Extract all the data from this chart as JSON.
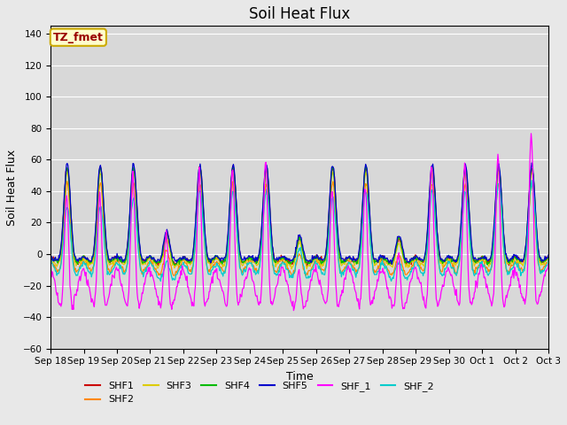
{
  "title": "Soil Heat Flux",
  "xlabel": "Time",
  "ylabel": "Soil Heat Flux",
  "ylim": [
    -60,
    145
  ],
  "yticks": [
    -60,
    -40,
    -20,
    0,
    20,
    40,
    60,
    80,
    100,
    120,
    140
  ],
  "x_tick_labels": [
    "Sep 18",
    "Sep 19",
    "Sep 20",
    "Sep 21",
    "Sep 22",
    "Sep 23",
    "Sep 24",
    "Sep 25",
    "Sep 26",
    "Sep 27",
    "Sep 28",
    "Sep 29",
    "Sep 30",
    "Oct 1",
    "Oct 2",
    "Oct 3"
  ],
  "series_colors": {
    "SHF1": "#cc0000",
    "SHF2": "#ff8800",
    "SHF3": "#ddcc00",
    "SHF4": "#00bb00",
    "SHF5": "#0000cc",
    "SHF_1": "#ff00ff",
    "SHF_2": "#00cccc"
  },
  "bg_color": "#e8e8e8",
  "plot_bg_color": "#d8d8d8",
  "annotation_text": "TZ_fmet",
  "annotation_bg": "#ffffcc",
  "annotation_border": "#ccaa00",
  "annotation_text_color": "#990000",
  "legend_entries": [
    "SHF1",
    "SHF2",
    "SHF3",
    "SHF4",
    "SHF5",
    "SHF_1",
    "SHF_2"
  ],
  "grid_color": "#ffffff",
  "title_fontsize": 12,
  "tick_fontsize": 7.5,
  "figsize": [
    6.4,
    4.8
  ],
  "dpi": 100
}
